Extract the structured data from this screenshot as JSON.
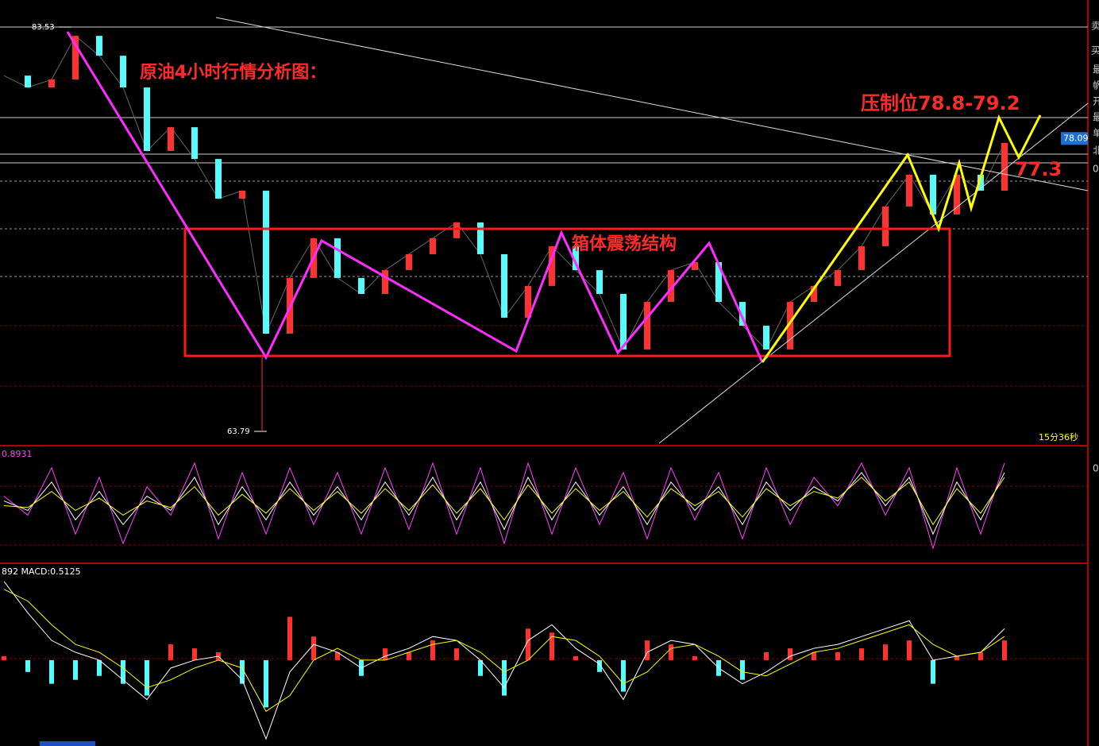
{
  "chart_data": [
    {
      "type": "candlestick",
      "title": "原油4小时行情分析图：",
      "ylim": [
        63.13,
        84.85
      ],
      "values": [
        81.16,
        80.58,
        80.97,
        83.1,
        82.13,
        80.58,
        77.48,
        78.64,
        77.09,
        75.15,
        75.54,
        68.56,
        71.28,
        73.22,
        71.28,
        70.5,
        71.66,
        72.44,
        73.22,
        73.99,
        72.44,
        69.34,
        70.89,
        72.83,
        71.66,
        70.5,
        67.79,
        70.11,
        71.66,
        72.05,
        70.11,
        68.95,
        67.79,
        70.11,
        70.89,
        71.66,
        72.83,
        74.77,
        76.32,
        74.38,
        76.32,
        75.54,
        77.87
      ],
      "color_up": "#ff3232",
      "color_down": "#54fcfc",
      "price_labels": [
        {
          "value": 83.53,
          "label": "83.53"
        },
        {
          "value": 63.79,
          "label": "63.79"
        },
        {
          "value": 78.09,
          "label": "78.09"
        }
      ],
      "annotations": [
        "箱体震荡结构",
        "压制位78.8-79.2",
        "77.3"
      ],
      "timer": "15分36秒"
    },
    {
      "type": "line",
      "ylim": [
        -10,
        110
      ],
      "value_label": "0.8931",
      "series": [
        {
          "color": "#ff40ff",
          "values": [
            60,
            40,
            90,
            20,
            80,
            10,
            70,
            40,
            95,
            15,
            85,
            20,
            90,
            30,
            85,
            20,
            90,
            25,
            95,
            20,
            90,
            10,
            95,
            20,
            90,
            30,
            85,
            15,
            90,
            35,
            85,
            15,
            90,
            30,
            80,
            50,
            95,
            40,
            90,
            5,
            90,
            20,
            95
          ]
        },
        {
          "color": "#ffffff",
          "values": [
            55,
            45,
            75,
            35,
            65,
            30,
            60,
            45,
            80,
            30,
            70,
            35,
            75,
            40,
            70,
            35,
            75,
            40,
            80,
            35,
            75,
            25,
            80,
            35,
            75,
            40,
            70,
            30,
            75,
            45,
            70,
            30,
            75,
            45,
            70,
            55,
            85,
            50,
            80,
            20,
            75,
            35,
            85
          ]
        },
        {
          "color": "#ffff00",
          "values": [
            50,
            48,
            65,
            45,
            58,
            40,
            55,
            48,
            70,
            40,
            62,
            42,
            68,
            45,
            65,
            42,
            68,
            45,
            72,
            42,
            68,
            35,
            72,
            42,
            68,
            45,
            65,
            38,
            68,
            50,
            65,
            38,
            68,
            50,
            65,
            58,
            80,
            55,
            75,
            30,
            68,
            42,
            80
          ]
        }
      ]
    },
    {
      "type": "macd",
      "ylim": [
        -2.1,
        2.4
      ],
      "value_label": "892 MACD:0.5125",
      "color_up": "#ff3232",
      "color_down": "#54fcfc",
      "values": [
        0.1,
        -0.3,
        -0.6,
        -0.5,
        -0.4,
        -0.6,
        -0.9,
        0.4,
        0.3,
        0.2,
        -0.6,
        -1.2,
        1.1,
        0.6,
        0.2,
        -0.4,
        0.3,
        0.2,
        0.5,
        0.3,
        -0.4,
        -0.9,
        0.8,
        0.7,
        0.1,
        -0.3,
        -0.8,
        0.5,
        0.4,
        0.1,
        -0.4,
        -0.5,
        0.2,
        0.3,
        0.2,
        0.2,
        0.3,
        0.4,
        0.5,
        -0.6,
        0.1,
        0.2,
        0.5
      ],
      "series": [
        {
          "color": "#ffffff",
          "values": [
            2.0,
            1.2,
            0.5,
            0.2,
            0.0,
            -0.5,
            -1.0,
            -0.2,
            0.0,
            0.1,
            -0.5,
            -2.0,
            -0.3,
            0.4,
            0.2,
            -0.2,
            0.1,
            0.3,
            0.6,
            0.5,
            0.0,
            -0.7,
            0.5,
            0.9,
            0.3,
            -0.1,
            -1.0,
            0.2,
            0.5,
            0.4,
            -0.2,
            -0.6,
            -0.3,
            0.1,
            0.3,
            0.4,
            0.6,
            0.8,
            1.0,
            0.0,
            0.1,
            0.2,
            0.8
          ]
        },
        {
          "color": "#ffff00",
          "values": [
            1.8,
            1.5,
            0.9,
            0.4,
            0.2,
            -0.2,
            -0.7,
            -0.5,
            -0.2,
            0.0,
            -0.2,
            -1.3,
            -0.9,
            0.0,
            0.3,
            0.0,
            0.0,
            0.2,
            0.4,
            0.5,
            0.2,
            -0.3,
            0.0,
            0.6,
            0.5,
            0.1,
            -0.6,
            -0.3,
            0.3,
            0.4,
            0.1,
            -0.3,
            -0.4,
            -0.1,
            0.2,
            0.3,
            0.5,
            0.7,
            0.9,
            0.4,
            0.1,
            0.2,
            0.6
          ]
        }
      ]
    }
  ],
  "sidebar": [
    "卖",
    "买",
    "最",
    "帆",
    "开",
    "最",
    "单",
    "北",
    "0",
    "0"
  ]
}
